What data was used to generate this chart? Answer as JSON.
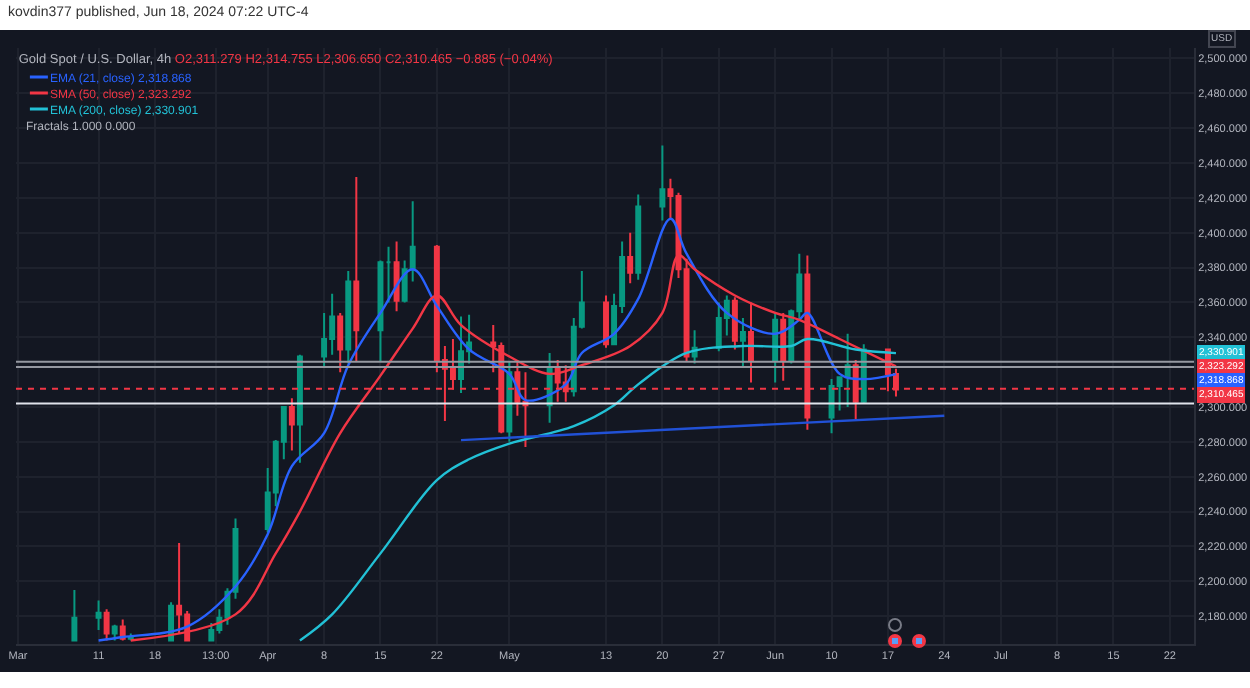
{
  "chart_data": {
    "type": "candlestick",
    "title": "Gold Spot / U.S. Dollar, 4h",
    "subtitle": "O2,311.279 H2,314.755 L2,306.650 C2,310.465 −0.885 (−0.04%)",
    "annotations": [
      "kovdin377 published, Jun 18, 2024 07:22 UTC-4",
      "Fractals 1.000 0.000",
      "USD",
      "2,318.868",
      "2,323.292",
      "2,330.901"
    ],
    "x": [
      "2024-03-08",
      "2024-03-11",
      "2024-03-12",
      "2024-03-13",
      "2024-03-14",
      "2024-03-15",
      "2024-03-20",
      "2024-03-21",
      "2024-03-22",
      "2024-03-25",
      "2024-03-26",
      "2024-03-27",
      "2024-03-28",
      "2024-04-01",
      "2024-04-02",
      "2024-04-03",
      "2024-04-04",
      "2024-04-05",
      "2024-04-08",
      "2024-04-09",
      "2024-04-10",
      "2024-04-11",
      "2024-04-12",
      "2024-04-15",
      "2024-04-16",
      "2024-04-17",
      "2024-04-18",
      "2024-04-19",
      "2024-04-22",
      "2024-04-23",
      "2024-04-24",
      "2024-04-25",
      "2024-04-26",
      "2024-04-29",
      "2024-04-30",
      "2024-05-01",
      "2024-05-02",
      "2024-05-03",
      "2024-05-06",
      "2024-05-07",
      "2024-05-08",
      "2024-05-09",
      "2024-05-10",
      "2024-05-13",
      "2024-05-14",
      "2024-05-15",
      "2024-05-16",
      "2024-05-17",
      "2024-05-20",
      "2024-05-21",
      "2024-05-22",
      "2024-05-23",
      "2024-05-24",
      "2024-05-27",
      "2024-05-28",
      "2024-05-29",
      "2024-05-30",
      "2024-05-31",
      "2024-06-03",
      "2024-06-04",
      "2024-06-05",
      "2024-06-06",
      "2024-06-07",
      "2024-06-10",
      "2024-06-11",
      "2024-06-12",
      "2024-06-13",
      "2024-06-14",
      "2024-06-17",
      "2024-06-18"
    ],
    "ohlc": [
      [
        2166,
        2195,
        2166,
        2179
      ],
      [
        2179,
        2189,
        2172,
        2182
      ],
      [
        2182,
        2184,
        2166,
        2170
      ],
      [
        2170,
        2175,
        2166,
        2174
      ],
      [
        2174,
        2178,
        2166,
        2167
      ],
      [
        2167,
        2170,
        2166,
        2168
      ],
      [
        2166,
        2188,
        2166,
        2186
      ],
      [
        2186,
        2222,
        2170,
        2181
      ],
      [
        2181,
        2183,
        2166,
        2166
      ],
      [
        2166,
        2176,
        2166,
        2172
      ],
      [
        2172,
        2184,
        2170,
        2179
      ],
      [
        2179,
        2196,
        2175,
        2194
      ],
      [
        2194,
        2236,
        2190,
        2230
      ],
      [
        2230,
        2265,
        2228,
        2251
      ],
      [
        2251,
        2281,
        2243,
        2280
      ],
      [
        2280,
        2300,
        2270,
        2300
      ],
      [
        2300,
        2305,
        2275,
        2290
      ],
      [
        2290,
        2330,
        2268,
        2329
      ],
      [
        2329,
        2354,
        2323,
        2339
      ],
      [
        2339,
        2365,
        2330,
        2352
      ],
      [
        2352,
        2354,
        2320,
        2333
      ],
      [
        2333,
        2378,
        2325,
        2372
      ],
      [
        2372,
        2432,
        2326,
        2344
      ],
      [
        2344,
        2384,
        2326,
        2383
      ],
      [
        2383,
        2392,
        2360,
        2383
      ],
      [
        2383,
        2395,
        2355,
        2361
      ],
      [
        2361,
        2384,
        2360,
        2379
      ],
      [
        2379,
        2418,
        2372,
        2392
      ],
      [
        2392,
        2393,
        2320,
        2327
      ],
      [
        2327,
        2335,
        2292,
        2322
      ],
      [
        2322,
        2339,
        2310,
        2316
      ],
      [
        2316,
        2352,
        2308,
        2332
      ],
      [
        2332,
        2353,
        2325,
        2337
      ],
      [
        2337,
        2347,
        2320,
        2335
      ],
      [
        2335,
        2337,
        2285,
        2286
      ],
      [
        2286,
        2326,
        2280,
        2320
      ],
      [
        2320,
        2326,
        2295,
        2303
      ],
      [
        2303,
        2320,
        2277,
        2301
      ],
      [
        2301,
        2331,
        2291,
        2323
      ],
      [
        2323,
        2327,
        2303,
        2314
      ],
      [
        2314,
        2324,
        2303,
        2309
      ],
      [
        2309,
        2351,
        2306,
        2346
      ],
      [
        2346,
        2378,
        2345,
        2360
      ],
      [
        2360,
        2364,
        2334,
        2336
      ],
      [
        2336,
        2365,
        2336,
        2358
      ],
      [
        2358,
        2395,
        2354,
        2386
      ],
      [
        2386,
        2400,
        2371,
        2377
      ],
      [
        2377,
        2422,
        2373,
        2415
      ],
      [
        2415,
        2450,
        2407,
        2425
      ],
      [
        2425,
        2431,
        2408,
        2421
      ],
      [
        2421,
        2423,
        2374,
        2379
      ],
      [
        2379,
        2385,
        2326,
        2329
      ],
      [
        2329,
        2344,
        2325,
        2334
      ],
      [
        2334,
        2360,
        2332,
        2351
      ],
      [
        2351,
        2364,
        2341,
        2361
      ],
      [
        2361,
        2363,
        2333,
        2338
      ],
      [
        2338,
        2351,
        2323,
        2343
      ],
      [
        2343,
        2360,
        2314,
        2327
      ],
      [
        2327,
        2354,
        2314,
        2350
      ],
      [
        2350,
        2354,
        2315,
        2327
      ],
      [
        2327,
        2356,
        2325,
        2355
      ],
      [
        2355,
        2388,
        2350,
        2376
      ],
      [
        2376,
        2387,
        2287,
        2294
      ],
      [
        2294,
        2316,
        2285,
        2312
      ],
      [
        2312,
        2317,
        2298,
        2317
      ],
      [
        2317,
        2342,
        2300,
        2324
      ],
      [
        2324,
        2327,
        2293,
        2303
      ],
      [
        2303,
        2336,
        2302,
        2333
      ],
      [
        2333,
        2333,
        2309,
        2319
      ],
      [
        2319,
        2322,
        2306,
        2310
      ]
    ],
    "colors": [
      "#089981",
      "#089981",
      "#f23645",
      "#089981",
      "#f23645",
      "#089981",
      "#089981",
      "#f23645",
      "#f23645",
      "#089981",
      "#089981",
      "#089981",
      "#089981",
      "#089981",
      "#089981",
      "#089981",
      "#f23645",
      "#089981",
      "#089981",
      "#089981",
      "#f23645",
      "#089981",
      "#f23645",
      "#089981",
      "#089981",
      "#f23645",
      "#089981",
      "#089981",
      "#f23645",
      "#f23645",
      "#f23645",
      "#089981",
      "#089981",
      "#f23645",
      "#f23645",
      "#089981",
      "#f23645",
      "#f23645",
      "#089981",
      "#f23645",
      "#f23645",
      "#089981",
      "#089981",
      "#f23645",
      "#089981",
      "#089981",
      "#f23645",
      "#089981",
      "#089981",
      "#f23645",
      "#f23645",
      "#f23645",
      "#089981",
      "#089981",
      "#089981",
      "#f23645",
      "#089981",
      "#f23645",
      "#089981",
      "#f23645",
      "#089981",
      "#089981",
      "#f23645",
      "#089981",
      "#089981",
      "#089981",
      "#f23645",
      "#089981",
      "#f23645",
      "#f23645"
    ],
    "series": [
      {
        "name": "EMA (21, close) 2,318.868",
        "type": "line",
        "color": "#2962ff",
        "x": [
          "2024-03-11",
          "2024-03-14",
          "2024-03-22",
          "2024-03-28",
          "2024-04-01",
          "2024-04-04",
          "2024-04-08",
          "2024-04-11",
          "2024-04-15",
          "2024-04-19",
          "2024-04-22",
          "2024-04-26",
          "2024-05-01",
          "2024-05-03",
          "2024-05-08",
          "2024-05-10",
          "2024-05-14",
          "2024-05-17",
          "2024-05-21",
          "2024-05-23",
          "2024-05-28",
          "2024-06-03",
          "2024-06-06",
          "2024-06-07",
          "2024-06-11",
          "2024-06-14",
          "2024-06-18"
        ],
        "values": [
          2166,
          2168,
          2174,
          2197,
          2227,
          2266,
          2285,
          2324,
          2354,
          2379,
          2358,
          2333,
          2319,
          2304,
          2313,
          2331,
          2342,
          2362,
          2408,
          2388,
          2354,
          2342,
          2350,
          2354,
          2319,
          2316,
          2318.868
        ]
      },
      {
        "name": "SMA (50, close) 2,323.292",
        "type": "line",
        "color": "#f23645",
        "x": [
          "2024-03-15",
          "2024-03-28",
          "2024-04-02",
          "2024-04-05",
          "2024-04-10",
          "2024-04-15",
          "2024-04-19",
          "2024-04-22",
          "2024-04-25",
          "2024-05-01",
          "2024-05-06",
          "2024-05-10",
          "2024-05-16",
          "2024-05-20",
          "2024-05-22",
          "2024-05-24",
          "2024-05-29",
          "2024-06-03",
          "2024-06-06",
          "2024-06-11",
          "2024-06-18"
        ],
        "values": [
          2166,
          2181,
          2216,
          2240,
          2285,
          2318,
          2345,
          2364,
          2347,
          2329,
          2319,
          2324,
          2335,
          2354,
          2387,
          2379,
          2364,
          2354,
          2350,
          2339,
          2323.292
        ]
      },
      {
        "name": "EMA (200, close) 2,330.901",
        "type": "line",
        "color": "#22c1d6",
        "x": [
          "2024-04-05",
          "2024-04-09",
          "2024-04-15",
          "2024-04-22",
          "2024-04-26",
          "2024-05-01",
          "2024-05-09",
          "2024-05-14",
          "2024-05-17",
          "2024-05-23",
          "2024-05-30",
          "2024-06-05",
          "2024-06-07",
          "2024-06-13",
          "2024-06-18"
        ],
        "values": [
          2166,
          2181,
          2216,
          2258,
          2270,
          2279,
          2289,
          2301,
          2313,
          2331,
          2335,
          2335,
          2339,
          2333,
          2330.901
        ]
      },
      {
        "type": "line",
        "color": "#2151d6",
        "x": [
          "2024-04-25",
          "2024-06-24"
        ],
        "values": [
          2281,
          2295
        ]
      }
    ],
    "ref_lines": [
      {
        "axis": "y",
        "value": 2302,
        "color": "#e0e3eb"
      },
      {
        "axis": "y",
        "value": 2326,
        "color": "#9598a1"
      },
      {
        "axis": "y",
        "value": 2323,
        "color": "#9598a1"
      },
      {
        "axis": "y",
        "value": 2310.465,
        "label": "2,310.465",
        "color": "#f23645",
        "line_style": "dotted"
      }
    ],
    "xlim": [
      "2024-02-29T18:00",
      "2024-07-25"
    ],
    "xticks": [
      {
        "value": "2024-03-01",
        "label": "Mar"
      },
      {
        "value": "2024-03-11",
        "label": "11"
      },
      {
        "value": "2024-03-18",
        "label": "18"
      },
      {
        "value": "2024-03-25T13:00",
        "label": "13:00"
      },
      {
        "value": "2024-04-01",
        "label": "Apr"
      },
      {
        "value": "2024-04-08",
        "label": "8"
      },
      {
        "value": "2024-04-15",
        "label": "15"
      },
      {
        "value": "2024-04-22",
        "label": "22"
      },
      {
        "value": "2024-05-01",
        "label": "May"
      },
      {
        "value": "2024-05-13",
        "label": "13"
      },
      {
        "value": "2024-05-20",
        "label": "20"
      },
      {
        "value": "2024-05-27",
        "label": "27"
      },
      {
        "value": "2024-06-03",
        "label": "Jun"
      },
      {
        "value": "2024-06-10",
        "label": "10"
      },
      {
        "value": "2024-06-17",
        "label": "17"
      },
      {
        "value": "2024-06-24",
        "label": "24"
      },
      {
        "value": "2024-07-01",
        "label": "Jul"
      },
      {
        "value": "2024-07-08",
        "label": "8"
      },
      {
        "value": "2024-07-15",
        "label": "15"
      },
      {
        "value": "2024-07-22",
        "label": "22"
      }
    ],
    "ylim": [
      2164,
      2506
    ],
    "yticks": [
      {
        "value": 2180,
        "label": "2,180.000"
      },
      {
        "value": 2200,
        "label": "2,200.000"
      },
      {
        "value": 2220,
        "label": "2,220.000"
      },
      {
        "value": 2240,
        "label": "2,240.000"
      },
      {
        "value": 2260,
        "label": "2,260.000"
      },
      {
        "value": 2280,
        "label": "2,280.000"
      },
      {
        "value": 2300,
        "label": "2,300.000"
      },
      {
        "value": 2340,
        "label": "2,340.000"
      },
      {
        "value": 2360,
        "label": "2,360.000"
      },
      {
        "value": 2380,
        "label": "2,380.000"
      },
      {
        "value": 2400,
        "label": "2,400.000"
      },
      {
        "value": 2420,
        "label": "2,420.000"
      },
      {
        "value": 2440,
        "label": "2,440.000"
      },
      {
        "value": 2460,
        "label": "2,460.000"
      },
      {
        "value": 2480,
        "label": "2,480.000"
      },
      {
        "value": 2500,
        "label": "2,500.000"
      }
    ],
    "grid": true,
    "legend": "top left"
  }
}
